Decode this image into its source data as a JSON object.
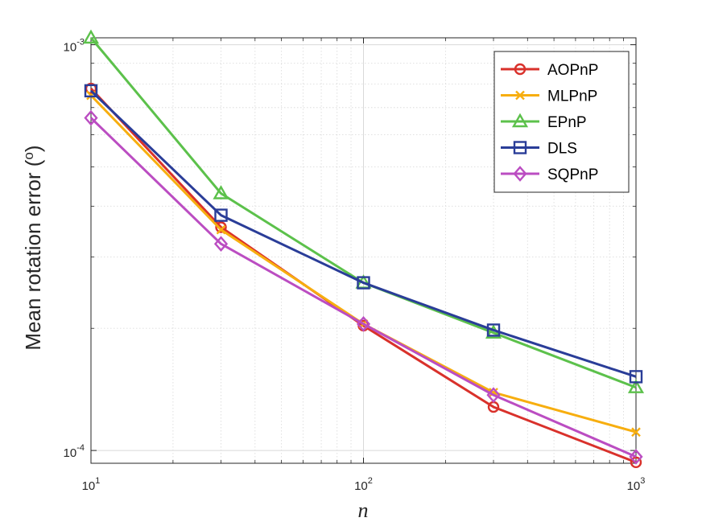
{
  "chart_data": {
    "type": "line",
    "xscale": "log",
    "yscale": "log",
    "xlabel": "n",
    "ylabel": "Mean rotation error",
    "ylabel_unit": "(",
    "ylabel_unit_sup": "o",
    "ylabel_unit_close": ")",
    "xlim": [
      10,
      1000
    ],
    "ylim": [
      9.3e-05,
      0.00104
    ],
    "grid": true,
    "legend_position": "top-right",
    "x_ticks": [
      {
        "value": 10,
        "base": "10",
        "exp": "1"
      },
      {
        "value": 100,
        "base": "10",
        "exp": "2"
      },
      {
        "value": 1000,
        "base": "10",
        "exp": "3"
      }
    ],
    "y_ticks": [
      {
        "value": 0.0001,
        "base": "10",
        "exp": "-4"
      },
      {
        "value": 0.001,
        "base": "10",
        "exp": "-3"
      }
    ],
    "x": [
      10,
      30,
      100,
      300,
      1000
    ],
    "series": [
      {
        "name": "AOPnP",
        "color": "#d95319",
        "stroke": "#d9312b",
        "marker": "circle",
        "values": [
          0.00078,
          0.000355,
          0.000203,
          0.000128,
          9.35e-05
        ]
      },
      {
        "name": "MLPnP",
        "color": "#f2b10c",
        "stroke": "#f7ae0f",
        "marker": "x",
        "values": [
          0.00075,
          0.00035,
          0.000205,
          0.000139,
          0.000111
        ]
      },
      {
        "name": "EPnP",
        "color": "#5bc24a",
        "stroke": "#5cc14b",
        "marker": "triangle",
        "values": [
          0.00104,
          0.00043,
          0.000259,
          0.000195,
          0.000143
        ]
      },
      {
        "name": "DLS",
        "color": "#273a98",
        "stroke": "#2a3d98",
        "marker": "square",
        "values": [
          0.00077,
          0.00038,
          0.000259,
          0.000198,
          0.000152
        ]
      },
      {
        "name": "SQPnP",
        "color": "#b545bc",
        "stroke": "#bb4dc2",
        "marker": "diamond",
        "values": [
          0.00066,
          0.000323,
          0.000205,
          0.000137,
          9.65e-05
        ]
      }
    ]
  }
}
